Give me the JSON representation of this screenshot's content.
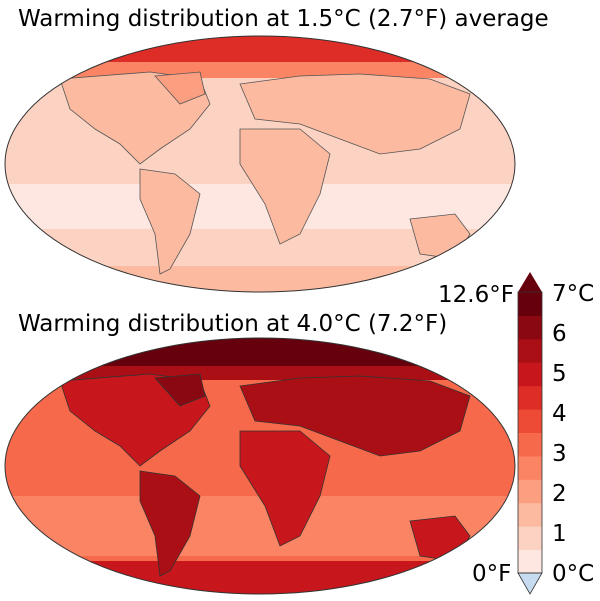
{
  "top_panel": {
    "title": "Warming distribution at 1.5°C (2.7°F) average"
  },
  "bottom_panel": {
    "title": "Warming distribution at 4.0°C (7.2°F)"
  },
  "colorbar": {
    "max_f_label": "12.6°F",
    "min_f_label": "0°F",
    "ticks_c": [
      "7°C",
      "6",
      "5",
      "4",
      "3",
      "2",
      "1",
      "0°C"
    ],
    "colors": [
      "#fde7e0",
      "#fcd2c2",
      "#fcbba1",
      "#fc9f81",
      "#fb8464",
      "#f6694a",
      "#ee4b36",
      "#de2c26",
      "#c7171c",
      "#aa0f15",
      "#8a0811",
      "#67000d"
    ],
    "under_color": "#c6dbef"
  },
  "palette": {
    "ocean_top": "#fcd2c2",
    "ocean_top_light": "#fde7e0",
    "ocean_bottom": "#f6694a",
    "land_warm": "#fcbba1",
    "land_hot": "#c7171c",
    "arctic_top": "#de2c26",
    "arctic_bottom": "#67000d"
  }
}
